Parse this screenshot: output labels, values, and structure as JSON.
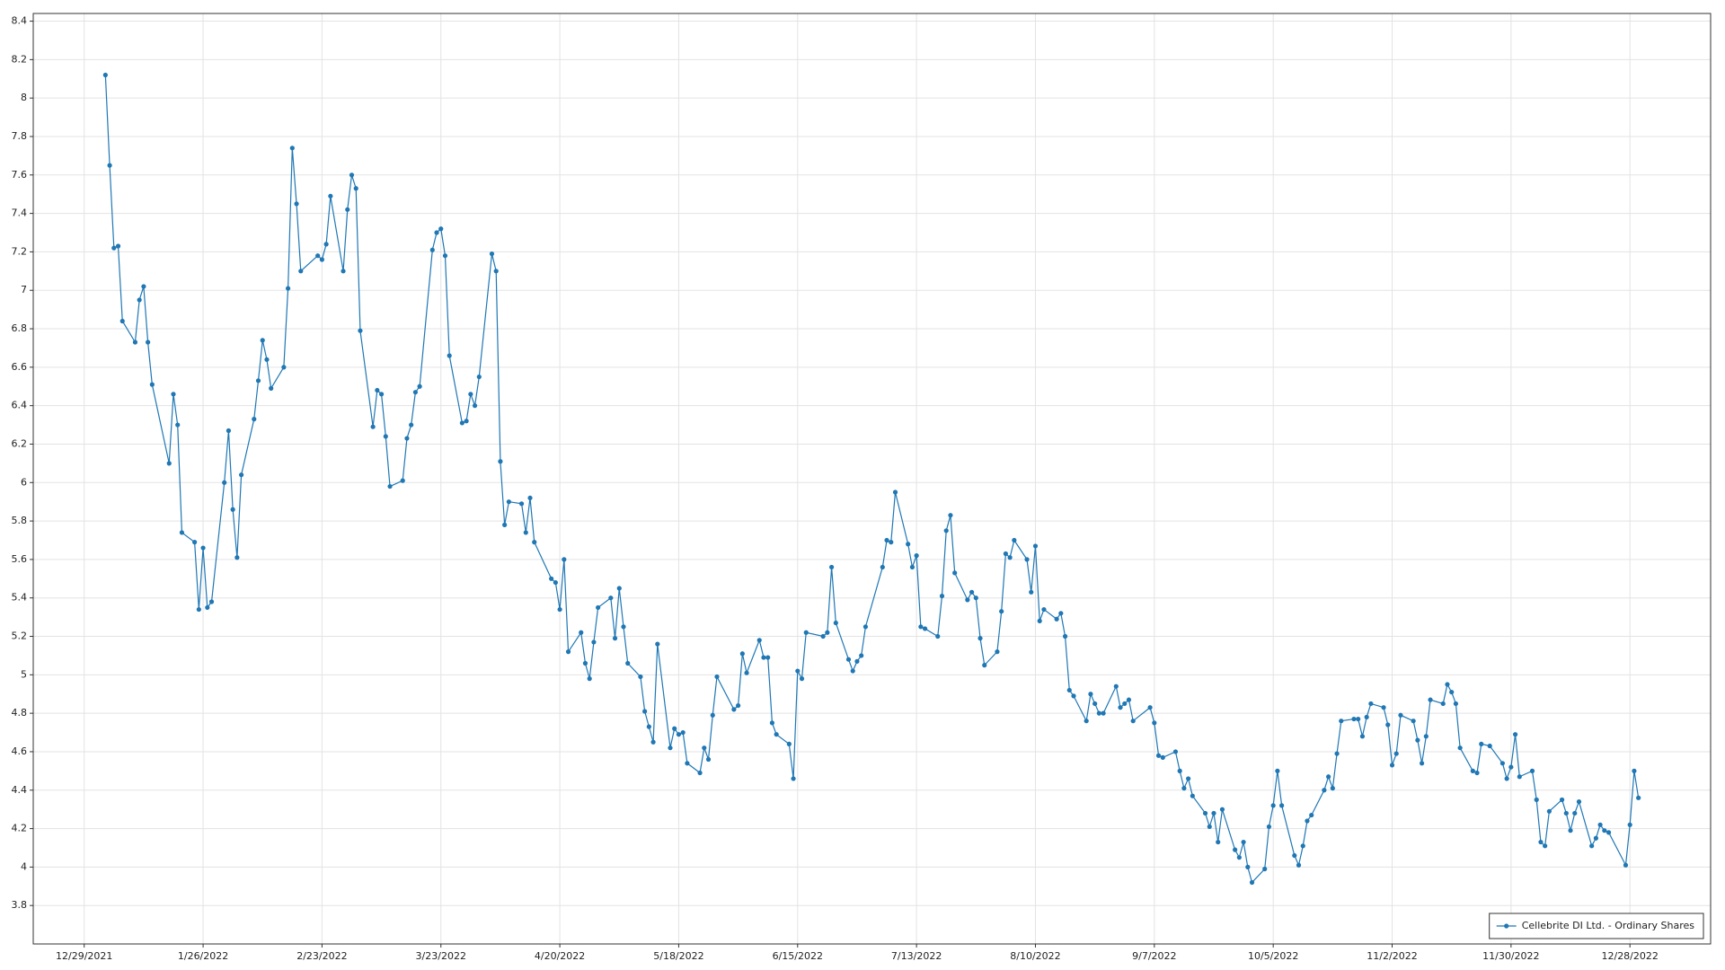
{
  "chart_data": {
    "type": "line",
    "x": [
      "2022-01-03",
      "2022-01-04",
      "2022-01-05",
      "2022-01-06",
      "2022-01-07",
      "2022-01-10",
      "2022-01-11",
      "2022-01-12",
      "2022-01-13",
      "2022-01-14",
      "2022-01-18",
      "2022-01-19",
      "2022-01-20",
      "2022-01-21",
      "2022-01-24",
      "2022-01-25",
      "2022-01-26",
      "2022-01-27",
      "2022-01-28",
      "2022-01-31",
      "2022-02-01",
      "2022-02-02",
      "2022-02-03",
      "2022-02-04",
      "2022-02-07",
      "2022-02-08",
      "2022-02-09",
      "2022-02-10",
      "2022-02-11",
      "2022-02-14",
      "2022-02-15",
      "2022-02-16",
      "2022-02-17",
      "2022-02-18",
      "2022-02-22",
      "2022-02-23",
      "2022-02-24",
      "2022-02-25",
      "2022-02-28",
      "2022-03-01",
      "2022-03-02",
      "2022-03-03",
      "2022-03-04",
      "2022-03-07",
      "2022-03-08",
      "2022-03-09",
      "2022-03-10",
      "2022-03-11",
      "2022-03-14",
      "2022-03-15",
      "2022-03-16",
      "2022-03-17",
      "2022-03-18",
      "2022-03-21",
      "2022-03-22",
      "2022-03-23",
      "2022-03-24",
      "2022-03-25",
      "2022-03-28",
      "2022-03-29",
      "2022-03-30",
      "2022-03-31",
      "2022-04-01",
      "2022-04-04",
      "2022-04-05",
      "2022-04-06",
      "2022-04-07",
      "2022-04-08",
      "2022-04-11",
      "2022-04-12",
      "2022-04-13",
      "2022-04-14",
      "2022-04-18",
      "2022-04-19",
      "2022-04-20",
      "2022-04-21",
      "2022-04-22",
      "2022-04-25",
      "2022-04-26",
      "2022-04-27",
      "2022-04-28",
      "2022-04-29",
      "2022-05-02",
      "2022-05-03",
      "2022-05-04",
      "2022-05-05",
      "2022-05-06",
      "2022-05-09",
      "2022-05-10",
      "2022-05-11",
      "2022-05-12",
      "2022-05-13",
      "2022-05-16",
      "2022-05-17",
      "2022-05-18",
      "2022-05-19",
      "2022-05-20",
      "2022-05-23",
      "2022-05-24",
      "2022-05-25",
      "2022-05-26",
      "2022-05-27",
      "2022-05-31",
      "2022-06-01",
      "2022-06-02",
      "2022-06-03",
      "2022-06-06",
      "2022-06-07",
      "2022-06-08",
      "2022-06-09",
      "2022-06-10",
      "2022-06-13",
      "2022-06-14",
      "2022-06-15",
      "2022-06-16",
      "2022-06-17",
      "2022-06-21",
      "2022-06-22",
      "2022-06-23",
      "2022-06-24",
      "2022-06-27",
      "2022-06-28",
      "2022-06-29",
      "2022-06-30",
      "2022-07-01",
      "2022-07-05",
      "2022-07-06",
      "2022-07-07",
      "2022-07-08",
      "2022-07-11",
      "2022-07-12",
      "2022-07-13",
      "2022-07-14",
      "2022-07-15",
      "2022-07-18",
      "2022-07-19",
      "2022-07-20",
      "2022-07-21",
      "2022-07-22",
      "2022-07-25",
      "2022-07-26",
      "2022-07-27",
      "2022-07-28",
      "2022-07-29",
      "2022-08-01",
      "2022-08-02",
      "2022-08-03",
      "2022-08-04",
      "2022-08-05",
      "2022-08-08",
      "2022-08-09",
      "2022-08-10",
      "2022-08-11",
      "2022-08-12",
      "2022-08-15",
      "2022-08-16",
      "2022-08-17",
      "2022-08-18",
      "2022-08-19",
      "2022-08-22",
      "2022-08-23",
      "2022-08-24",
      "2022-08-25",
      "2022-08-26",
      "2022-08-29",
      "2022-08-30",
      "2022-08-31",
      "2022-09-01",
      "2022-09-02",
      "2022-09-06",
      "2022-09-07",
      "2022-09-08",
      "2022-09-09",
      "2022-09-12",
      "2022-09-13",
      "2022-09-14",
      "2022-09-15",
      "2022-09-16",
      "2022-09-19",
      "2022-09-20",
      "2022-09-21",
      "2022-09-22",
      "2022-09-23",
      "2022-09-26",
      "2022-09-27",
      "2022-09-28",
      "2022-09-29",
      "2022-09-30",
      "2022-10-03",
      "2022-10-04",
      "2022-10-05",
      "2022-10-06",
      "2022-10-07",
      "2022-10-10",
      "2022-10-11",
      "2022-10-12",
      "2022-10-13",
      "2022-10-14",
      "2022-10-17",
      "2022-10-18",
      "2022-10-19",
      "2022-10-20",
      "2022-10-21",
      "2022-10-24",
      "2022-10-25",
      "2022-10-26",
      "2022-10-27",
      "2022-10-28",
      "2022-10-31",
      "2022-11-01",
      "2022-11-02",
      "2022-11-03",
      "2022-11-04",
      "2022-11-07",
      "2022-11-08",
      "2022-11-09",
      "2022-11-10",
      "2022-11-11",
      "2022-11-14",
      "2022-11-15",
      "2022-11-16",
      "2022-11-17",
      "2022-11-18",
      "2022-11-21",
      "2022-11-22",
      "2022-11-23",
      "2022-11-25",
      "2022-11-28",
      "2022-11-29",
      "2022-11-30",
      "2022-12-01",
      "2022-12-02",
      "2022-12-05",
      "2022-12-06",
      "2022-12-07",
      "2022-12-08",
      "2022-12-09",
      "2022-12-12",
      "2022-12-13",
      "2022-12-14",
      "2022-12-15",
      "2022-12-16",
      "2022-12-19",
      "2022-12-20",
      "2022-12-21",
      "2022-12-22",
      "2022-12-23",
      "2022-12-27",
      "2022-12-28",
      "2022-12-29",
      "2022-12-30"
    ],
    "series": [
      {
        "name": "Cellebrite DI Ltd. - Ordinary Shares",
        "color": "#1f77b4",
        "values": [
          8.12,
          7.65,
          7.22,
          7.23,
          6.84,
          6.73,
          6.95,
          7.02,
          6.73,
          6.51,
          6.1,
          6.46,
          6.3,
          5.74,
          5.69,
          5.34,
          5.66,
          5.35,
          5.38,
          6.0,
          6.27,
          5.86,
          5.61,
          6.04,
          6.33,
          6.53,
          6.74,
          6.64,
          6.49,
          6.6,
          7.01,
          7.74,
          7.45,
          7.1,
          7.18,
          7.16,
          7.24,
          7.49,
          7.1,
          7.42,
          7.6,
          7.53,
          6.79,
          6.29,
          6.48,
          6.46,
          6.24,
          5.98,
          6.01,
          6.23,
          6.3,
          6.47,
          6.5,
          7.21,
          7.3,
          7.32,
          7.18,
          6.66,
          6.31,
          6.32,
          6.46,
          6.4,
          6.55,
          7.19,
          7.1,
          6.11,
          5.78,
          5.9,
          5.89,
          5.74,
          5.92,
          5.69,
          5.5,
          5.48,
          5.34,
          5.6,
          5.12,
          5.22,
          5.06,
          4.98,
          5.17,
          5.35,
          5.4,
          5.19,
          5.45,
          5.25,
          5.06,
          4.99,
          4.81,
          4.73,
          4.65,
          5.16,
          4.62,
          4.72,
          4.69,
          4.7,
          4.54,
          4.49,
          4.62,
          4.56,
          4.79,
          4.99,
          4.82,
          4.84,
          5.11,
          5.01,
          5.18,
          5.09,
          5.09,
          4.75,
          4.69,
          4.64,
          4.46,
          5.02,
          4.98,
          5.22,
          5.2,
          5.22,
          5.56,
          5.27,
          5.08,
          5.02,
          5.07,
          5.1,
          5.25,
          5.56,
          5.7,
          5.69,
          5.95,
          5.68,
          5.56,
          5.62,
          5.25,
          5.24,
          5.2,
          5.41,
          5.75,
          5.83,
          5.53,
          5.39,
          5.43,
          5.4,
          5.19,
          5.05,
          5.12,
          5.33,
          5.63,
          5.61,
          5.7,
          5.6,
          5.43,
          5.67,
          5.28,
          5.34,
          5.29,
          5.32,
          5.2,
          4.92,
          4.89,
          4.76,
          4.9,
          4.85,
          4.8,
          4.8,
          4.94,
          4.83,
          4.85,
          4.87,
          4.76,
          4.83,
          4.75,
          4.58,
          4.57,
          4.6,
          4.5,
          4.41,
          4.46,
          4.37,
          4.28,
          4.21,
          4.28,
          4.13,
          4.3,
          4.09,
          4.05,
          4.13,
          4.0,
          3.92,
          3.99,
          4.21,
          4.32,
          4.5,
          4.32,
          4.06,
          4.01,
          4.11,
          4.24,
          4.27,
          4.4,
          4.47,
          4.41,
          4.59,
          4.76,
          4.77,
          4.77,
          4.68,
          4.78,
          4.85,
          4.83,
          4.74,
          4.53,
          4.59,
          4.79,
          4.76,
          4.66,
          4.54,
          4.68,
          4.87,
          4.85,
          4.95,
          4.91,
          4.85,
          4.62,
          4.5,
          4.49,
          4.64,
          4.63,
          4.54,
          4.46,
          4.52,
          4.69,
          4.47,
          4.5,
          4.35,
          4.13,
          4.11,
          4.29,
          4.35,
          4.28,
          4.19,
          4.28,
          4.34,
          4.11,
          4.15,
          4.22,
          4.19,
          4.18,
          4.01,
          4.22,
          4.5,
          4.36
        ]
      }
    ],
    "xlim": [
      "2021-12-17",
      "2023-01-16"
    ],
    "xticks": [
      {
        "value": "2021-12-29",
        "label": "12/29/2021"
      },
      {
        "value": "2022-01-26",
        "label": "1/26/2022"
      },
      {
        "value": "2022-02-23",
        "label": "2/23/2022"
      },
      {
        "value": "2022-03-23",
        "label": "3/23/2022"
      },
      {
        "value": "2022-04-20",
        "label": "4/20/2022"
      },
      {
        "value": "2022-05-18",
        "label": "5/18/2022"
      },
      {
        "value": "2022-06-15",
        "label": "6/15/2022"
      },
      {
        "value": "2022-07-13",
        "label": "7/13/2022"
      },
      {
        "value": "2022-08-10",
        "label": "8/10/2022"
      },
      {
        "value": "2022-09-07",
        "label": "9/7/2022"
      },
      {
        "value": "2022-10-05",
        "label": "10/5/2022"
      },
      {
        "value": "2022-11-02",
        "label": "11/2/2022"
      },
      {
        "value": "2022-11-30",
        "label": "11/30/2022"
      },
      {
        "value": "2022-12-28",
        "label": "12/28/2022"
      }
    ],
    "ylim": [
      3.6,
      8.44
    ],
    "yticks": [
      3.8,
      4,
      4.2,
      4.4,
      4.6,
      4.8,
      5,
      5.2,
      5.4,
      5.6,
      5.8,
      6,
      6.2,
      6.4,
      6.6,
      6.8,
      7,
      7.2,
      7.4,
      7.6,
      7.8,
      8,
      8.2,
      8.4
    ],
    "grid": true,
    "legend": "bottom-right"
  }
}
